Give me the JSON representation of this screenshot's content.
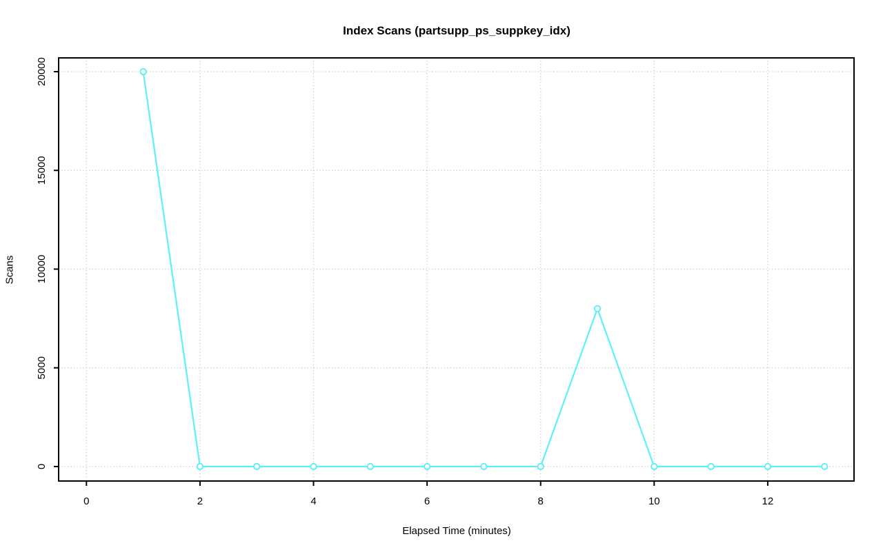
{
  "chart_data": {
    "type": "line",
    "title": "Index Scans (partsupp_ps_suppkey_idx)",
    "xlabel": "Elapsed Time (minutes)",
    "ylabel": "Scans",
    "x": [
      1,
      2,
      3,
      4,
      5,
      6,
      7,
      8,
      9,
      10,
      11,
      12,
      13
    ],
    "y": [
      20000,
      0,
      0,
      0,
      0,
      0,
      0,
      0,
      8000,
      0,
      0,
      0,
      0
    ],
    "xticks": [
      0,
      2,
      4,
      6,
      8,
      10,
      12
    ],
    "yticks": [
      0,
      5000,
      10000,
      15000,
      20000
    ],
    "xlim": [
      -0.5,
      13.5
    ],
    "ylim": [
      -800,
      20800
    ],
    "grid": true,
    "grid_style": "dotted",
    "legend": "none",
    "marker": "open-circle",
    "colors": {
      "series": "#5ff0f5",
      "grid": "#c9c9c9",
      "axis": "#000000",
      "background": "#ffffff"
    }
  }
}
